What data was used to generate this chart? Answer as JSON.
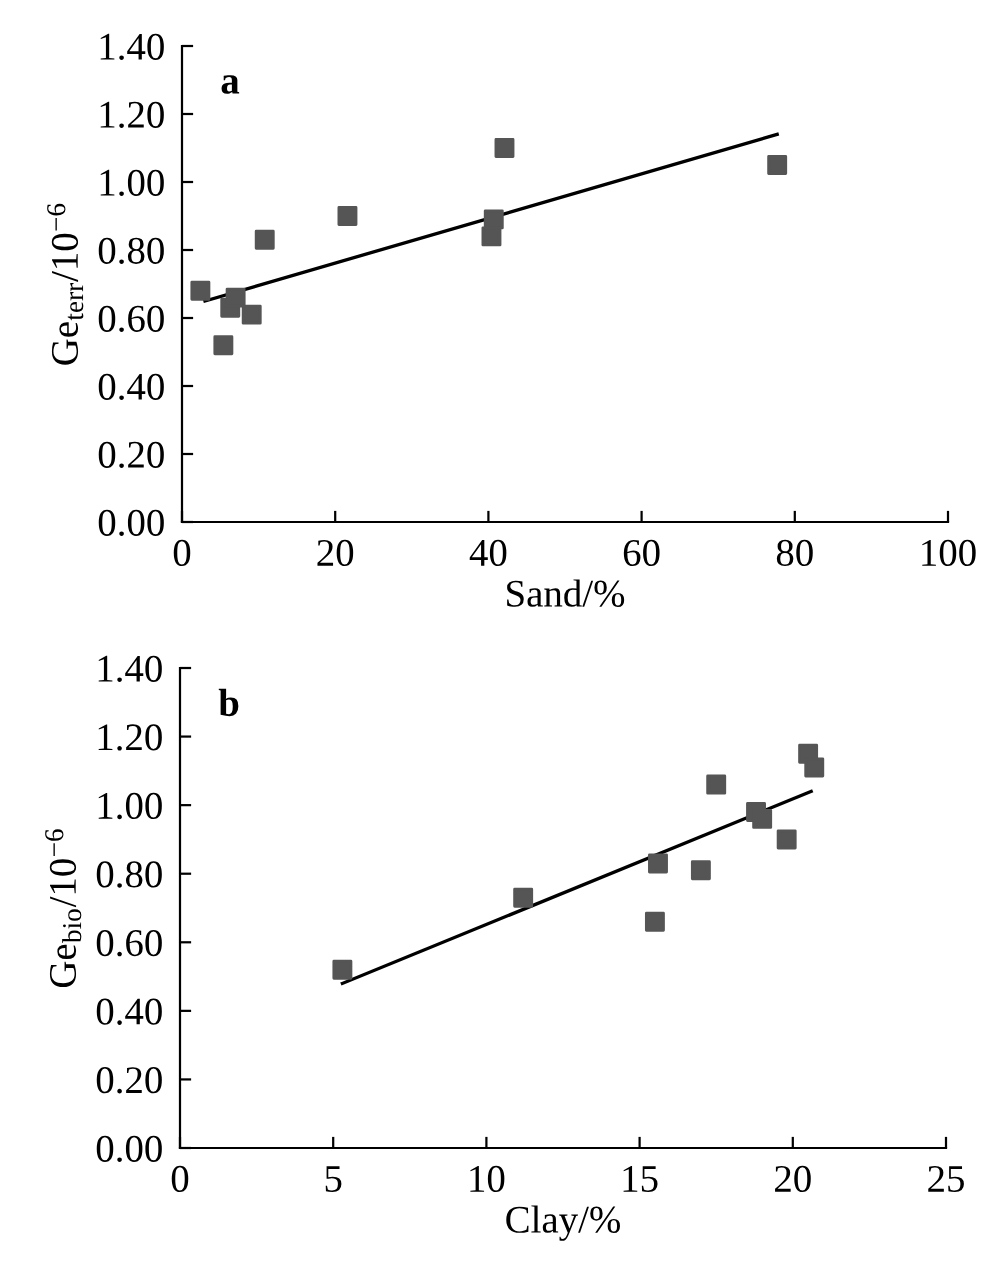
{
  "chart_data": [
    {
      "type": "scatter",
      "xlabel": "Sand/%",
      "ylabel": "Ge$_{terr}$/10$^{−6}$",
      "annotations": [
        "a"
      ],
      "xlim": [
        0,
        100
      ],
      "ylim": [
        0,
        1.4
      ],
      "xticks": [
        0,
        20,
        40,
        60,
        80,
        100
      ],
      "yticks": [
        {
          "value": 0,
          "label": "0.00"
        },
        {
          "value": 0.2,
          "label": "0.20"
        },
        {
          "value": 0.4,
          "label": "0.40"
        },
        {
          "value": 0.6,
          "label": "0.60"
        },
        {
          "value": 0.8,
          "label": "0.80"
        },
        {
          "value": 1.0,
          "label": "1.00"
        },
        {
          "value": 1.2,
          "label": "1.20"
        },
        {
          "value": 1.4,
          "label": "1.40"
        }
      ],
      "grid": false,
      "series": [
        {
          "marker": "square",
          "color": "#555555",
          "x": [
            2.4,
            5.4,
            6.3,
            7.0,
            9.1,
            10.8,
            21.6,
            40.4,
            40.7,
            42.1,
            77.7
          ],
          "values": [
            0.68,
            0.52,
            0.63,
            0.66,
            0.61,
            0.83,
            0.9,
            0.84,
            0.89,
            1.1,
            1.05
          ]
        },
        {
          "type": "line",
          "marker": "none",
          "color": "#000000",
          "x": [
            3.0,
            77.7
          ],
          "values": [
            0.65,
            1.14
          ]
        }
      ]
    },
    {
      "type": "scatter",
      "xlabel": "Clay/%",
      "ylabel": "Ge$_{bio}$/10$^{−6}$",
      "annotations": [
        "b"
      ],
      "xlim": [
        0,
        25
      ],
      "ylim": [
        0,
        1.4
      ],
      "xticks": [
        0,
        5,
        10,
        15,
        20,
        25
      ],
      "yticks": [
        {
          "value": 0,
          "label": "0.00"
        },
        {
          "value": 0.2,
          "label": "0.20"
        },
        {
          "value": 0.4,
          "label": "0.40"
        },
        {
          "value": 0.6,
          "label": "0.60"
        },
        {
          "value": 0.8,
          "label": "0.80"
        },
        {
          "value": 1.0,
          "label": "1.00"
        },
        {
          "value": 1.2,
          "label": "1.20"
        },
        {
          "value": 1.4,
          "label": "1.40"
        }
      ],
      "grid": false,
      "series": [
        {
          "marker": "square",
          "color": "#555555",
          "x": [
            5.3,
            11.2,
            15.5,
            15.6,
            17.0,
            17.5,
            18.8,
            19.0,
            19.8,
            20.5,
            20.7
          ],
          "values": [
            0.52,
            0.73,
            0.66,
            0.83,
            0.81,
            1.06,
            0.98,
            0.96,
            0.9,
            1.15,
            1.11
          ]
        },
        {
          "type": "line",
          "marker": "none",
          "color": "#000000",
          "x": [
            5.3,
            20.6
          ],
          "values": [
            0.48,
            1.04
          ]
        }
      ]
    }
  ]
}
